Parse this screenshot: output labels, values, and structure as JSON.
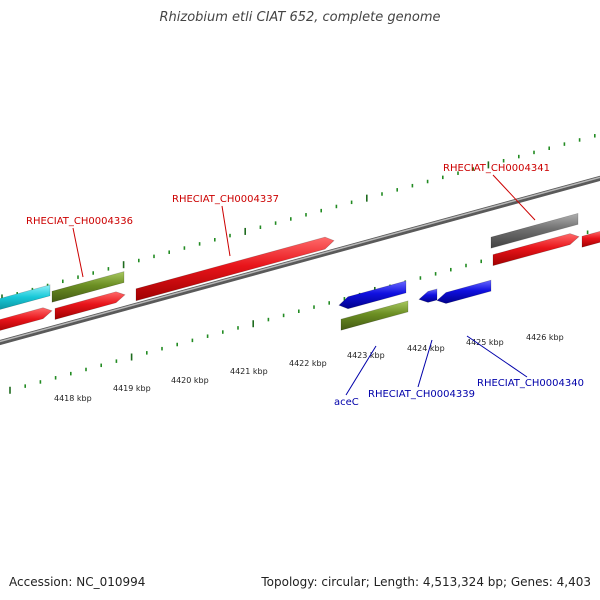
{
  "title": "Rhizobium etli CIAT 652, complete genome",
  "footer": {
    "accession": "Accession: NC_010994",
    "topology": "Topology: circular; Length: 4,513,324 bp; Genes: 4,403"
  },
  "scale_ticks": [
    "4418 kbp",
    "4419 kbp",
    "4420 kbp",
    "4421 kbp",
    "4422 kbp",
    "4423 kbp",
    "4424 kbp",
    "4425 kbp",
    "4426 kbp"
  ],
  "gene_labels": [
    {
      "id": "RHECIAT_CH0004336",
      "text": "RHECIAT_CH0004336",
      "color": "#cc0000"
    },
    {
      "id": "RHECIAT_CH0004337",
      "text": "RHECIAT_CH0004337",
      "color": "#cc0000"
    },
    {
      "id": "RHECIAT_CH0004341",
      "text": "RHECIAT_CH0004341",
      "color": "#cc0000"
    },
    {
      "id": "aceC",
      "text": "aceC",
      "color": "#0000aa"
    },
    {
      "id": "RHECIAT_CH0004339",
      "text": "RHECIAT_CH0004339",
      "color": "#0000aa"
    },
    {
      "id": "RHECIAT_CH0004340",
      "text": "RHECIAT_CH0004340",
      "color": "#0000aa"
    }
  ],
  "colors": {
    "red": "#e8141a",
    "blue": "#1010e0",
    "green": "#6b8e23",
    "cyan": "#18c8d8",
    "gray": "#707070",
    "tick_green": "#228b22",
    "backbone": "#8a8a8a"
  }
}
